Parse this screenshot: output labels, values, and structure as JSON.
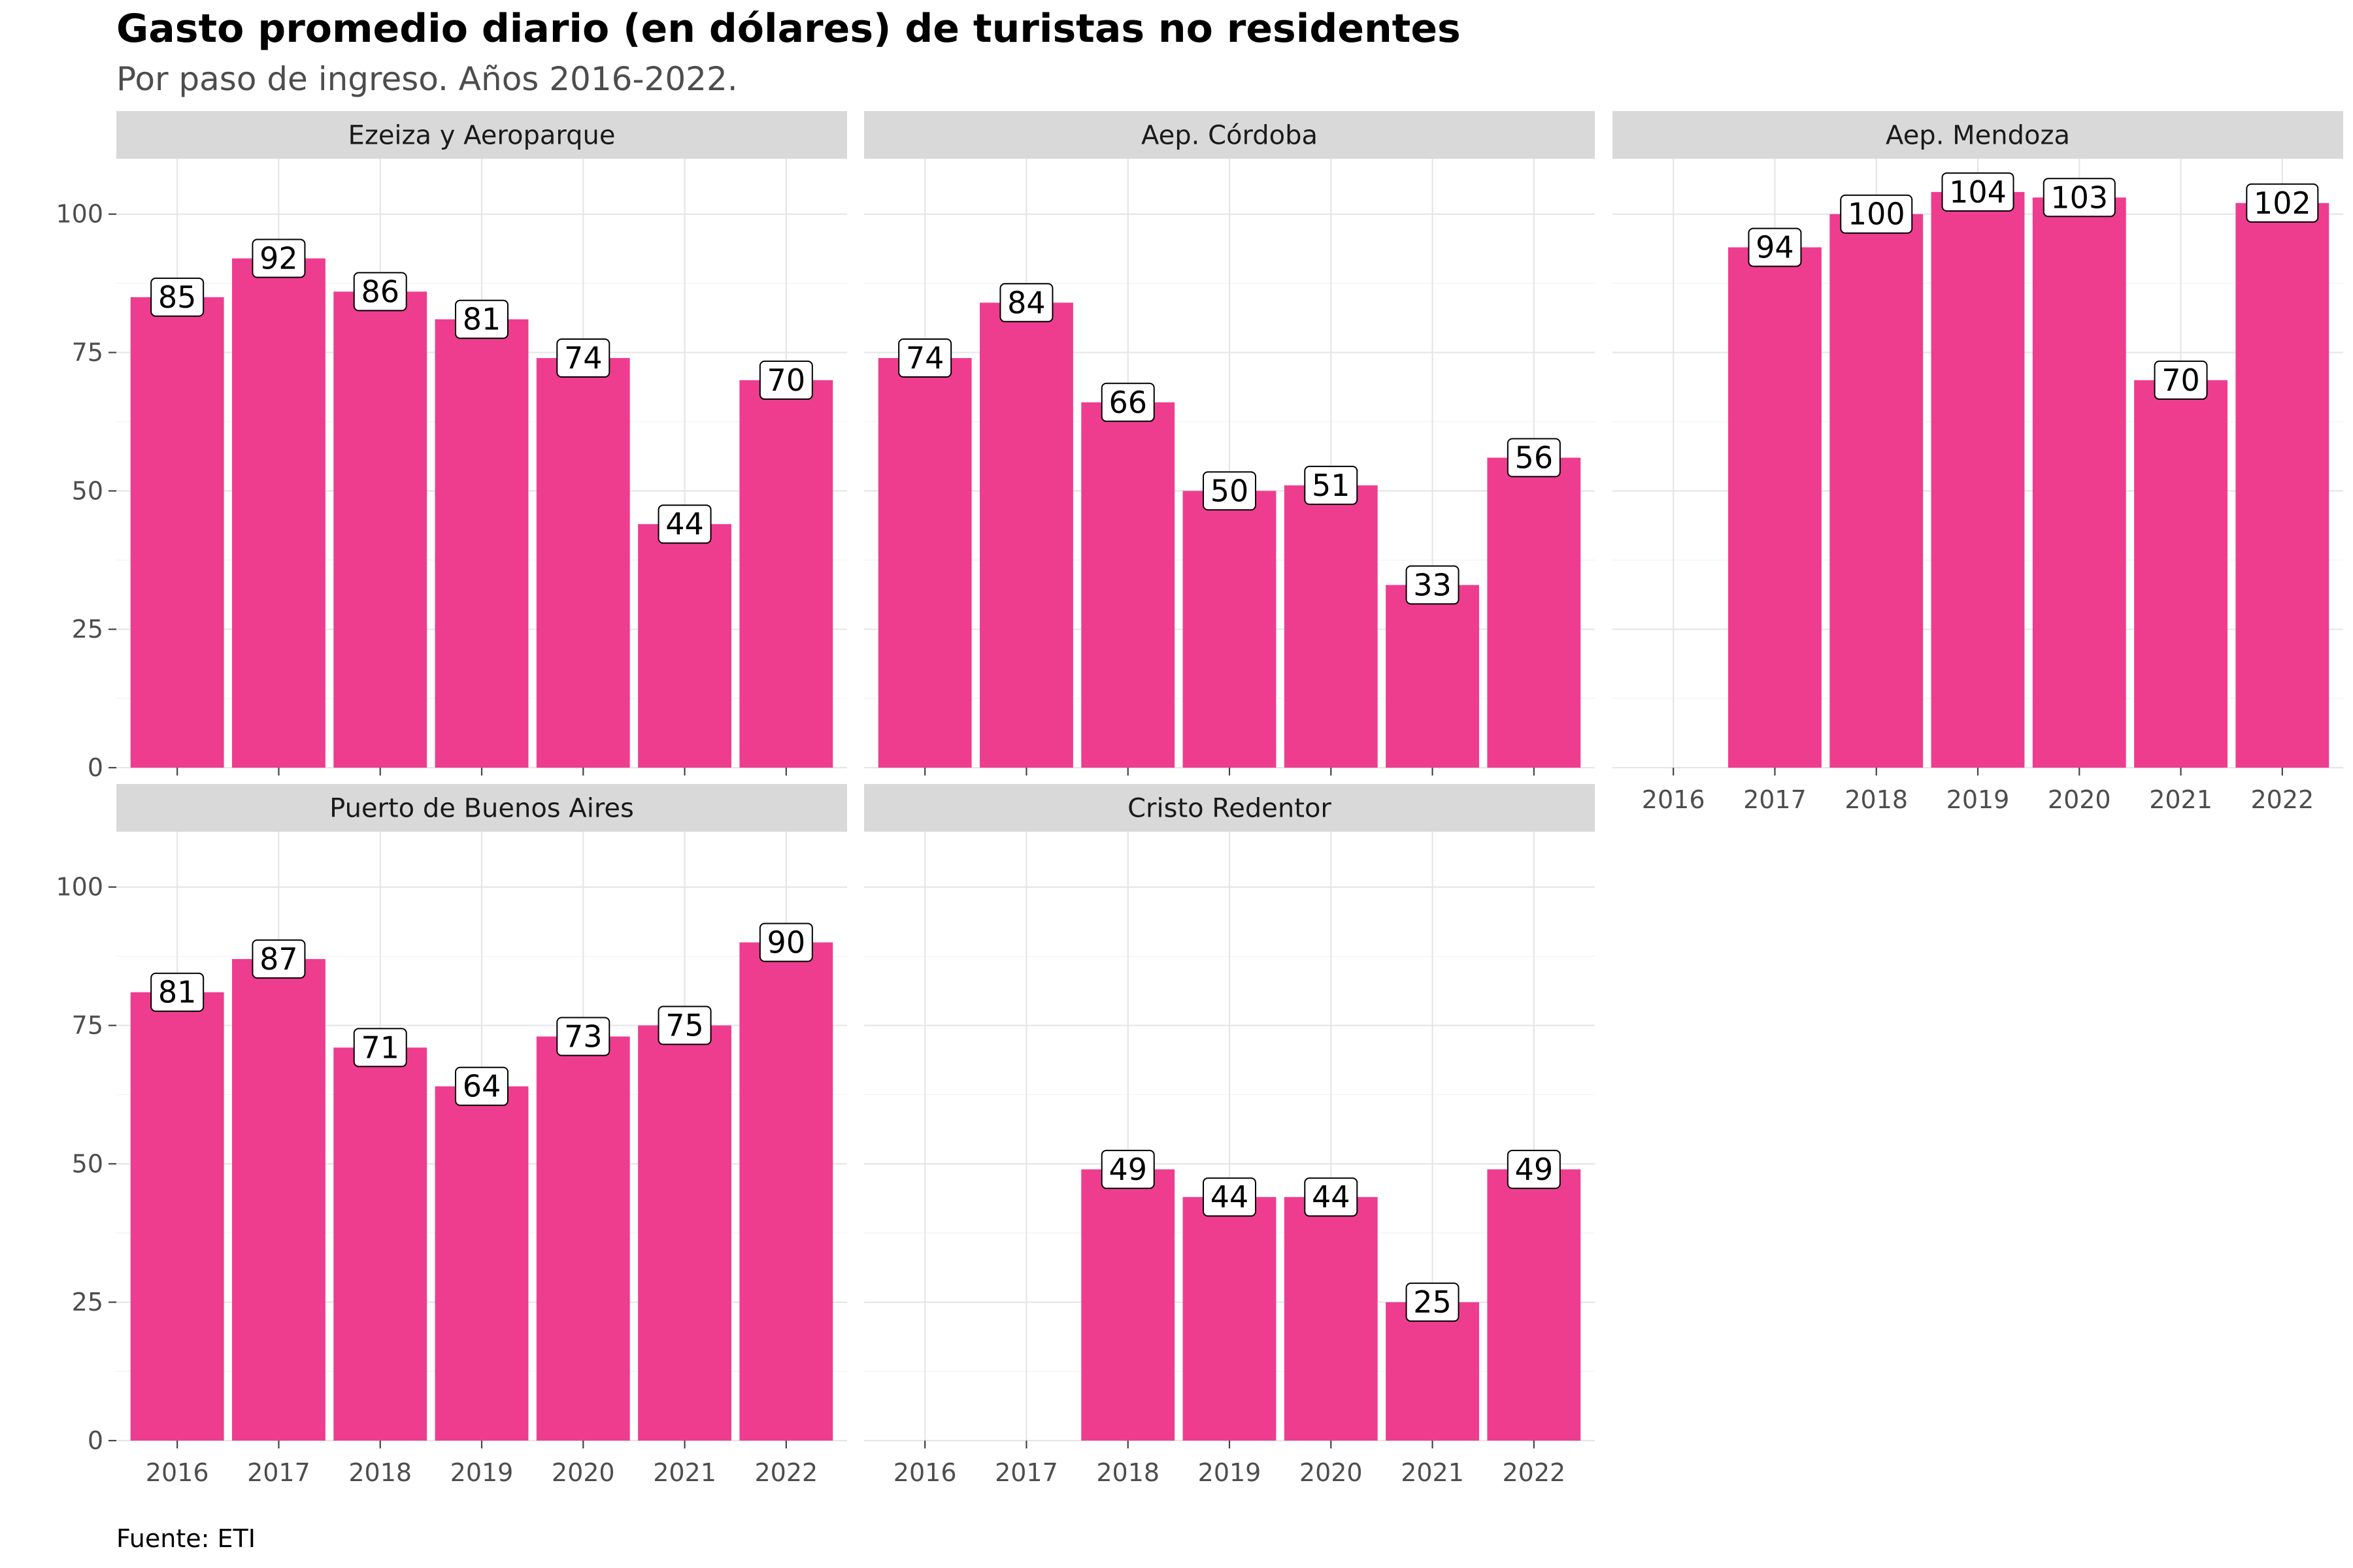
{
  "title": "Gasto promedio diario (en dólares) de turistas no residentes",
  "subtitle": "Por paso de ingreso. Años 2016-2022.",
  "caption": "Fuente: ETI",
  "colors": {
    "bar": "#ee3d8f",
    "strip": "#d9d9d9",
    "grid": "#e6e6e6"
  },
  "chart_data": {
    "type": "bar",
    "categories": [
      "2016",
      "2017",
      "2018",
      "2019",
      "2020",
      "2021",
      "2022"
    ],
    "ylim": [
      0,
      110
    ],
    "y_ticks": [
      0,
      25,
      50,
      75,
      100
    ],
    "y_tick_labels": [
      "0",
      "25",
      "50",
      "75",
      "100"
    ],
    "grid": true,
    "panels": [
      {
        "name": "Ezeiza y Aeroparque",
        "values": [
          85,
          92,
          86,
          81,
          74,
          44,
          70
        ]
      },
      {
        "name": "Aep. Córdoba",
        "values": [
          74,
          84,
          66,
          50,
          51,
          33,
          56
        ]
      },
      {
        "name": "Aep. Mendoza",
        "values": [
          null,
          94,
          100,
          104,
          103,
          70,
          102
        ]
      },
      {
        "name": "Puerto de Buenos Aires",
        "values": [
          81,
          87,
          71,
          64,
          73,
          75,
          90
        ]
      },
      {
        "name": "Cristo Redentor",
        "values": [
          null,
          null,
          49,
          44,
          44,
          25,
          49
        ]
      }
    ]
  }
}
